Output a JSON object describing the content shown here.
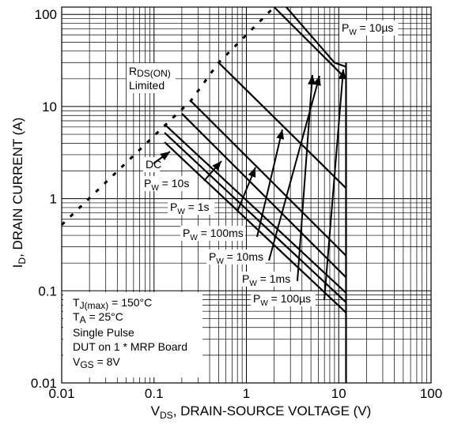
{
  "chart_data": {
    "type": "line",
    "xlabel_main": "V",
    "xlabel_sub": "DS",
    "xlabel_rest": ", DRAIN-SOURCE VOLTAGE (V)",
    "ylabel_main": "I",
    "ylabel_sub": "D",
    "ylabel_rest": ", DRAIN CURRENT (A)",
    "x_scale": "log",
    "y_scale": "log",
    "xlim": [
      0.01,
      100
    ],
    "ylim": [
      0.01,
      120
    ],
    "grid": true,
    "x_ticks": [
      {
        "value": 0.01,
        "label": "0.01"
      },
      {
        "value": 0.1,
        "label": "0.1"
      },
      {
        "value": 1,
        "label": "1"
      },
      {
        "value": 10,
        "label": "10"
      },
      {
        "value": 100,
        "label": "100"
      }
    ],
    "y_ticks": [
      {
        "value": 0.01,
        "label": "0.01"
      },
      {
        "value": 0.1,
        "label": "0.1"
      },
      {
        "value": 1,
        "label": "1"
      },
      {
        "value": 10,
        "label": "10"
      },
      {
        "value": 100,
        "label": "100"
      }
    ],
    "rds_limit": {
      "label_main": "R",
      "label_sub": "DS(ON)",
      "label_line2": "Limited",
      "points": [
        [
          0.01,
          0.52
        ],
        [
          0.13,
          6.2
        ],
        [
          0.25,
          11.5
        ],
        [
          0.5,
          30
        ],
        [
          2.0,
          120
        ]
      ]
    },
    "series": [
      {
        "name_main": "DC",
        "name_sub": "",
        "name_rest": "",
        "points": [
          [
            0.13,
            4.1
          ],
          [
            12,
            0.058
          ]
        ]
      },
      {
        "name_main": "P",
        "name_sub": "W",
        "name_rest": " = 10s",
        "points": [
          [
            0.13,
            5.2
          ],
          [
            12,
            0.075
          ]
        ]
      },
      {
        "name_main": "P",
        "name_sub": "W",
        "name_rest": " = 1s",
        "points": [
          [
            0.135,
            6.2
          ],
          [
            12,
            0.095
          ]
        ]
      },
      {
        "name_main": "P",
        "name_sub": "W",
        "name_rest": " = 100ms",
        "points": [
          [
            0.2,
            8.4
          ],
          [
            12,
            0.14
          ]
        ]
      },
      {
        "name_main": "P",
        "name_sub": "W",
        "name_rest": " = 10ms",
        "points": [
          [
            0.25,
            11.5
          ],
          [
            12,
            0.24
          ]
        ]
      },
      {
        "name_main": "P",
        "name_sub": "W",
        "name_rest": " = 1ms",
        "points": [
          [
            0.5,
            30
          ],
          [
            12,
            1.3
          ]
        ]
      },
      {
        "name_main": "P",
        "name_sub": "W",
        "name_rest": " = 100µs",
        "points": [
          [
            2.0,
            120
          ],
          [
            12,
            20
          ]
        ]
      },
      {
        "name_main": "P",
        "name_sub": "W",
        "name_rest": " = 10µs",
        "points": [
          [
            2.7,
            120
          ],
          [
            9,
            30
          ],
          [
            12,
            27
          ]
        ]
      }
    ],
    "voltage_limit": {
      "x": 12,
      "y_range": [
        0.01,
        30
      ]
    },
    "conditions": [
      {
        "main": "T",
        "sub": "J(max)",
        "rest": " = 150°C"
      },
      {
        "main": "T",
        "sub": "A",
        "rest": " = 25°C"
      },
      {
        "main": "Single Pulse",
        "sub": "",
        "rest": ""
      },
      {
        "main": "DUT on 1 * MRP Board",
        "sub": "",
        "rest": ""
      },
      {
        "main": "V",
        "sub": "GS",
        "rest": " = 8V"
      }
    ]
  }
}
